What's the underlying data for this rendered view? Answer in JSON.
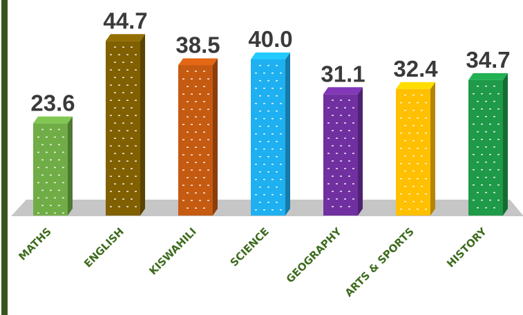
{
  "chart_data": {
    "type": "bar",
    "categories": [
      "MATHS",
      "ENGLISH",
      "KISWAHILI",
      "SCIENCE",
      "GEOGRAPHY",
      "ARTS & SPORTS",
      "HISTORY"
    ],
    "values": [
      23.6,
      44.7,
      38.5,
      40.0,
      31.1,
      32.4,
      34.7
    ],
    "value_labels": [
      "23.6",
      "44.7",
      "38.5",
      "40.0",
      "31.1",
      "32.4",
      "34.7"
    ],
    "colors": [
      "#70ad47",
      "#806000",
      "#c55a11",
      "#1eb0f0",
      "#7030a0",
      "#ffc000",
      "#1e9a48"
    ],
    "title": "",
    "xlabel": "",
    "ylabel": "",
    "ylim": [
      0,
      50
    ],
    "grid": false,
    "legend": "none",
    "style": "3d-columns"
  }
}
